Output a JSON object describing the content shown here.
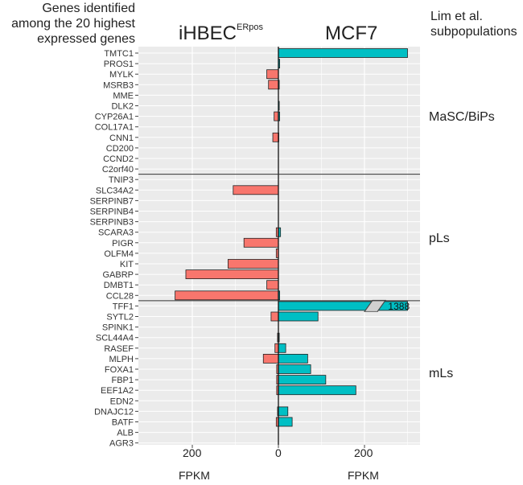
{
  "header": {
    "left_lines": [
      "Genes identified",
      "among the 20 highest",
      "expressed genes"
    ],
    "center_left": "iHBEC",
    "center_left_sup": "ERpos",
    "center_right": "MCF7",
    "right_lines": [
      "Lim et al.",
      "subpopulations"
    ]
  },
  "xaxis": {
    "ticks": [
      "200",
      "0",
      "200"
    ],
    "label_left": "FPKM",
    "label_right": "FPKM"
  },
  "groups": [
    "MaSC/BiPs",
    "pLs",
    "mLs"
  ],
  "colors": {
    "ihbec": "#F8766D",
    "mcf7": "#00BFC4",
    "panel": "#EBEBEB",
    "grid": "#FFFFFF"
  },
  "chart_data": {
    "type": "bar",
    "orientation": "horizontal, diverging",
    "xlabel": "FPKM",
    "xlim": [
      -310,
      320
    ],
    "categories": [
      "TMTC1",
      "PROS1",
      "MYLK",
      "MSRB3",
      "MME",
      "DLK2",
      "CYP26A1",
      "COL17A1",
      "CNN1",
      "CD200",
      "CCND2",
      "C2orf40",
      "TNIP3",
      "SLC34A2",
      "SERPINB7",
      "SERPINB4",
      "SERPINB3",
      "SCARA3",
      "PIGR",
      "OLFM4",
      "KIT",
      "GABRP",
      "DMBT1",
      "CCL28",
      "TFF1",
      "SYTL2",
      "SPINK1",
      "SCL44A4",
      "RASEF",
      "MLPH",
      "FOXA1",
      "FBP1",
      "EEF1A2",
      "EDN2",
      "DNAJC12",
      "BATF",
      "ALB",
      "AGR3"
    ],
    "group_of_category": [
      "MaSC/BiPs",
      "MaSC/BiPs",
      "MaSC/BiPs",
      "MaSC/BiPs",
      "MaSC/BiPs",
      "MaSC/BiPs",
      "MaSC/BiPs",
      "MaSC/BiPs",
      "MaSC/BiPs",
      "MaSC/BiPs",
      "MaSC/BiPs",
      "MaSC/BiPs",
      "pLs",
      "pLs",
      "pLs",
      "pLs",
      "pLs",
      "pLs",
      "pLs",
      "pLs",
      "pLs",
      "pLs",
      "pLs",
      "pLs",
      "mLs",
      "mLs",
      "mLs",
      "mLs",
      "mLs",
      "mLs",
      "mLs",
      "mLs",
      "mLs",
      "mLs",
      "mLs",
      "mLs",
      "mLs",
      "mLs"
    ],
    "series": [
      {
        "name": "iHBEC ERpos",
        "direction": "left",
        "values": [
          0,
          0,
          27,
          23,
          0,
          0,
          10,
          0,
          13,
          0,
          0,
          0,
          0,
          105,
          0,
          0,
          0,
          5,
          80,
          5,
          117,
          215,
          27,
          240,
          0,
          17,
          0,
          2,
          8,
          35,
          4,
          4,
          4,
          0,
          2,
          5,
          0,
          0
        ]
      },
      {
        "name": "MCF7",
        "direction": "right",
        "values": [
          300,
          3,
          0,
          2,
          0,
          2,
          3,
          0,
          1,
          0,
          0,
          0,
          0,
          0,
          0,
          0,
          0,
          5,
          0,
          0,
          0,
          0,
          0,
          3,
          1388,
          92,
          0,
          2,
          17,
          68,
          75,
          110,
          180,
          0,
          22,
          32,
          0,
          0
        ]
      }
    ],
    "axis_break": {
      "from": 200,
      "to": 230
    },
    "annotations": [
      {
        "category": "TFF1",
        "text": "1388"
      }
    ]
  }
}
